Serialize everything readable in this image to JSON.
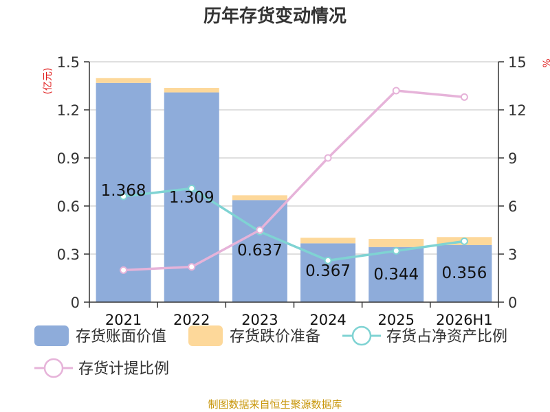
{
  "chart_data": {
    "type": "bar",
    "title": "历年存货变动情况",
    "y_left_unit": "(亿元)",
    "y_right_unit": "%",
    "categories": [
      "2021",
      "2022",
      "2023",
      "2024",
      "2025",
      "2026H1"
    ],
    "y_left": {
      "range": [
        0,
        1.5
      ],
      "ticks": [
        "0",
        "0.3",
        "0.6",
        "0.9",
        "1.2",
        "1.5"
      ]
    },
    "y_right": {
      "range": [
        0,
        15
      ],
      "ticks": [
        "0",
        "3",
        "6",
        "9",
        "12",
        "15"
      ]
    },
    "grid": true,
    "legend_position": "bottom",
    "series": [
      {
        "name": "存货账面价值",
        "type": "bar",
        "axis": "left",
        "stack": "inv",
        "color": "#8eacda",
        "values": [
          1.368,
          1.309,
          0.637,
          0.367,
          0.344,
          0.356
        ],
        "labels": [
          "1.368",
          "1.309",
          "0.637",
          "0.367",
          "0.344",
          "0.356"
        ]
      },
      {
        "name": "存货跌价准备",
        "type": "bar",
        "axis": "left",
        "stack": "inv",
        "color": "#fdd89a",
        "values": [
          0.03,
          0.028,
          0.03,
          0.035,
          0.05,
          0.05
        ]
      },
      {
        "name": "存货占净资产比例",
        "type": "line",
        "axis": "right",
        "color": "#7fd3d3",
        "values": [
          6.6,
          7.1,
          4.4,
          2.6,
          3.2,
          3.8
        ]
      },
      {
        "name": "存货计提比例",
        "type": "line",
        "axis": "right",
        "color": "#e6b3d9",
        "values": [
          2.0,
          2.2,
          4.5,
          9.0,
          13.2,
          12.8
        ]
      }
    ]
  },
  "footer": {
    "source": "制图数据来自恒生聚源数据库"
  }
}
